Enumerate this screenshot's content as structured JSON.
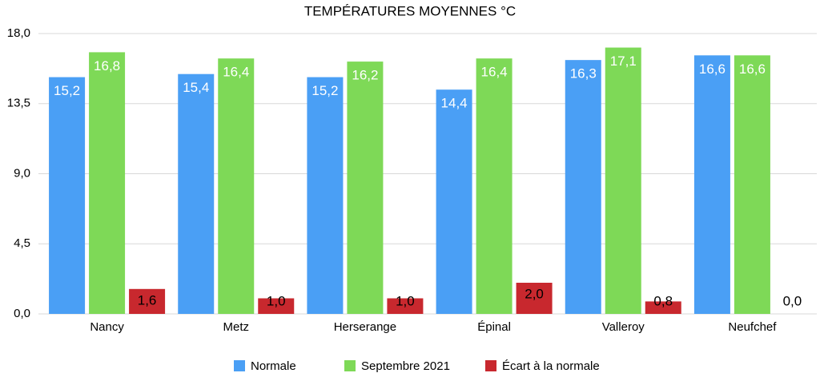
{
  "chart_data": {
    "type": "bar",
    "title": "TEMPÉRATURES MOYENNES °C",
    "categories": [
      "Nancy",
      "Metz",
      "Herserange",
      "Épinal",
      "Valleroy",
      "Neufchef"
    ],
    "series": [
      {
        "name": "Normale",
        "color": "#4a9ff5",
        "values": [
          15.2,
          15.4,
          15.2,
          14.4,
          16.3,
          16.6
        ],
        "value_labels": [
          "15,2",
          "15,4",
          "15,2",
          "14,4",
          "16,3",
          "16,6"
        ]
      },
      {
        "name": "Septembre 2021",
        "color": "#7ed957",
        "values": [
          16.8,
          16.4,
          16.2,
          16.4,
          17.1,
          16.6
        ],
        "value_labels": [
          "16,8",
          "16,4",
          "16,2",
          "16,4",
          "17,1",
          "16,6"
        ]
      },
      {
        "name": "Écart à la normale",
        "color": "#c8282e",
        "values": [
          1.6,
          1.0,
          1.0,
          2.0,
          0.8,
          0.0
        ],
        "value_labels": [
          "1,6",
          "1,0",
          "1,0",
          "2,0",
          "0,8",
          "0,0"
        ]
      }
    ],
    "ylim": [
      0,
      18
    ],
    "yticks": [
      {
        "value": 0,
        "label": "0,0"
      },
      {
        "value": 4.5,
        "label": "4,5"
      },
      {
        "value": 9,
        "label": "9,0"
      },
      {
        "value": 13.5,
        "label": "13,5"
      },
      {
        "value": 18,
        "label": "18,0"
      }
    ],
    "grid": true,
    "legend": "bottom"
  }
}
